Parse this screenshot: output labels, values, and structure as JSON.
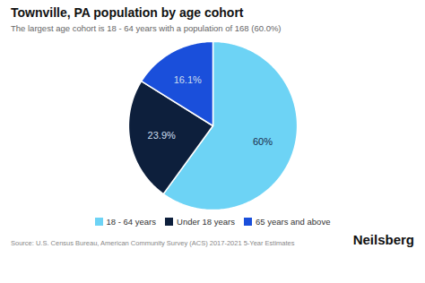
{
  "chart_data": {
    "type": "pie",
    "title": "Townville, PA population by age cohort",
    "subtitle": "The largest age cohort is 18 - 64 years with a population of 168 (60.0%)",
    "categories": [
      "18 - 64 years",
      "Under 18 years",
      "65 years and above"
    ],
    "values": [
      60.0,
      23.9,
      16.1
    ],
    "value_labels": [
      "60%",
      "23.9%",
      "16.1%"
    ],
    "colors": [
      "#6DD3F5",
      "#0D1F3C",
      "#1A4FDB"
    ],
    "data_labels": true,
    "legend": "bottom",
    "annotations": [
      "Source: U.S. Census Bureau, American Community Survey (ACS) 2017-2021 5-Year Estimates",
      "Neilsberg"
    ]
  }
}
